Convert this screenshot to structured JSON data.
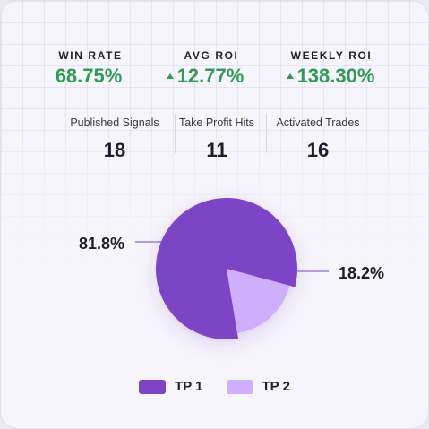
{
  "stats": {
    "win_rate": {
      "label": "WIN RATE",
      "value": "68.75%"
    },
    "avg_roi": {
      "label": "AVG ROI",
      "value": "12.77%"
    },
    "weekly_roi": {
      "label": "WEEKLY ROI",
      "value": "138.30%"
    }
  },
  "counts": {
    "published": {
      "label": "Published Signals",
      "value": "18"
    },
    "take_profit": {
      "label": "Take Profit Hits",
      "value": "11"
    },
    "activated": {
      "label": "Activated Trades",
      "value": "16"
    }
  },
  "colors": {
    "positive": "#2f9a58",
    "tp1": "#7b44c6",
    "tp2": "#cfaefc"
  },
  "chart_data": {
    "type": "pie",
    "categories": [
      "TP 1",
      "TP 2"
    ],
    "values": [
      81.8,
      18.2
    ],
    "data_labels": [
      "81.8%",
      "18.2%"
    ],
    "title": "",
    "legend_position": "bottom"
  }
}
